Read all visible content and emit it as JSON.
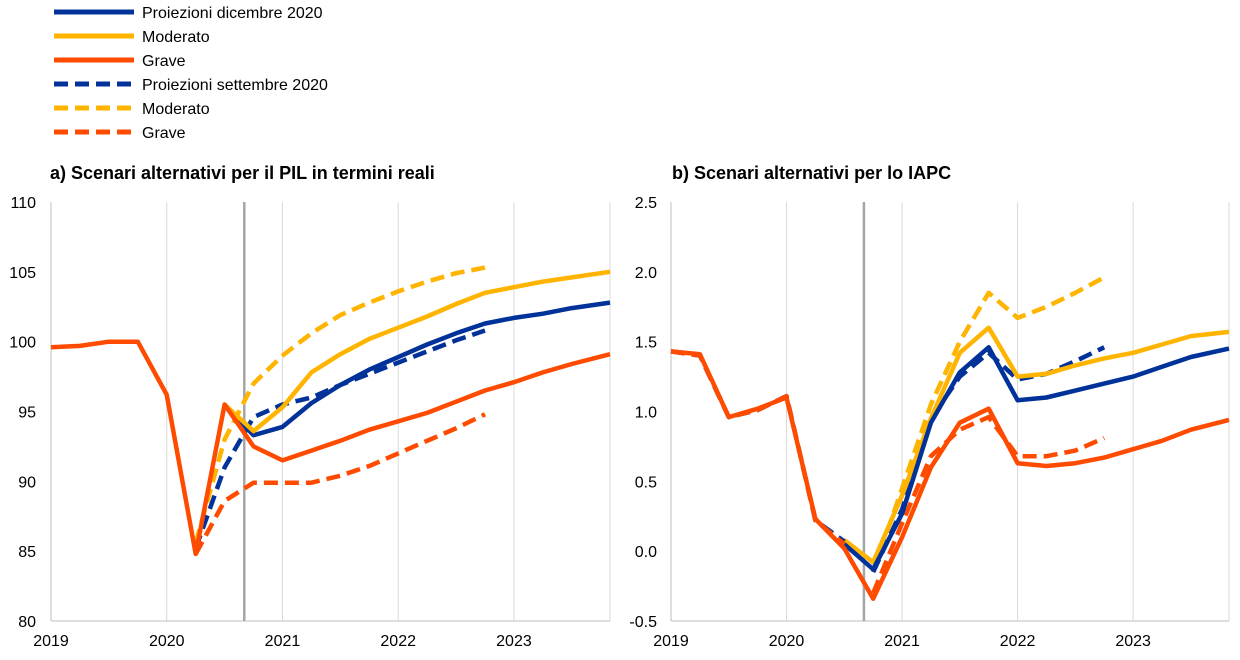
{
  "legend": {
    "items": [
      {
        "label": "Proiezioni dicembre 2020",
        "color": "#003299",
        "dash": false
      },
      {
        "label": "Moderato",
        "color": "#FFB400",
        "dash": false
      },
      {
        "label": "Grave",
        "color": "#FF4B00",
        "dash": false
      },
      {
        "label": "Proiezioni settembre 2020",
        "color": "#003299",
        "dash": true
      },
      {
        "label": "Moderato",
        "color": "#FFB400",
        "dash": true
      },
      {
        "label": "Grave",
        "color": "#FF4B00",
        "dash": true
      }
    ]
  },
  "chart_data": [
    {
      "type": "line",
      "title": "a) Scenari alternativi per il PIL in termini reali",
      "xlabel": "",
      "ylabel": "",
      "x_ticks": [
        "2019",
        "2020",
        "2021",
        "2022",
        "2023"
      ],
      "x_range": [
        2019.0,
        2023.83
      ],
      "ylim": [
        80,
        110
      ],
      "y_ticks": [
        "80",
        "85",
        "90",
        "95",
        "100",
        "105",
        "110"
      ],
      "grid": "vertical",
      "vline": 2020.67,
      "series": [
        {
          "legend_index": 1,
          "color": "#FFB400",
          "dash": true,
          "x": [
            2020.25,
            2020.5,
            2020.75,
            2021.0,
            2021.25,
            2021.5,
            2021.75,
            2022.0,
            2022.25,
            2022.5,
            2022.75
          ],
          "y": [
            85.6,
            93.0,
            97.0,
            99.0,
            100.6,
            101.9,
            102.8,
            103.6,
            104.3,
            104.9,
            105.3
          ]
        },
        {
          "legend_index": 2,
          "color": "#FF4B00",
          "dash": true,
          "x": [
            2020.25,
            2020.5,
            2020.75,
            2021.0,
            2021.25,
            2021.5,
            2021.75,
            2022.0,
            2022.25,
            2022.5,
            2022.75
          ],
          "y": [
            84.8,
            88.6,
            89.9,
            89.9,
            89.9,
            90.4,
            91.1,
            92.0,
            92.9,
            93.8,
            94.8
          ]
        },
        {
          "legend_index": 0,
          "color": "#003299",
          "dash": true,
          "x": [
            2020.25,
            2020.5,
            2020.75,
            2021.0,
            2021.25,
            2021.5,
            2021.75,
            2022.0,
            2022.25,
            2022.5,
            2022.75
          ],
          "y": [
            85.2,
            91.0,
            94.6,
            95.5,
            96.0,
            96.9,
            97.7,
            98.5,
            99.3,
            100.1,
            100.8
          ]
        },
        {
          "legend_index": 0,
          "color": "#003299",
          "dash": false,
          "x": [
            2020.5,
            2020.75,
            2021.0,
            2021.25,
            2021.5,
            2021.75,
            2022.0,
            2022.25,
            2022.5,
            2022.75,
            2023.0,
            2023.25,
            2023.5,
            2023.83
          ],
          "y": [
            95.5,
            93.3,
            93.9,
            95.6,
            96.9,
            98.0,
            98.9,
            99.8,
            100.6,
            101.3,
            101.7,
            102.0,
            102.4,
            102.8
          ]
        },
        {
          "legend_index": 1,
          "color": "#FFB400",
          "dash": false,
          "x": [
            2020.5,
            2020.75,
            2021.0,
            2021.25,
            2021.5,
            2021.75,
            2022.0,
            2022.25,
            2022.5,
            2022.75,
            2023.0,
            2023.25,
            2023.5,
            2023.83
          ],
          "y": [
            95.5,
            93.6,
            95.3,
            97.8,
            99.1,
            100.2,
            101.0,
            101.8,
            102.7,
            103.5,
            103.9,
            104.3,
            104.6,
            105.0
          ]
        },
        {
          "legend_index": 2,
          "color": "#FF4B00",
          "dash": false,
          "x": [
            2019.0,
            2019.25,
            2019.5,
            2019.75,
            2020.0,
            2020.25,
            2020.5,
            2020.75,
            2021.0,
            2021.25,
            2021.5,
            2021.75,
            2022.0,
            2022.25,
            2022.5,
            2022.75,
            2023.0,
            2023.25,
            2023.5,
            2023.83
          ],
          "y": [
            99.6,
            99.7,
            100.0,
            100.0,
            96.2,
            84.8,
            95.5,
            92.5,
            91.5,
            92.2,
            92.9,
            93.7,
            94.3,
            94.9,
            95.7,
            96.5,
            97.1,
            97.8,
            98.4,
            99.1
          ]
        }
      ]
    },
    {
      "type": "line",
      "title": "b) Scenari alternativi per lo IAPC",
      "xlabel": "",
      "ylabel": "",
      "x_ticks": [
        "2019",
        "2020",
        "2021",
        "2022",
        "2023"
      ],
      "x_range": [
        2019.0,
        2023.83
      ],
      "ylim": [
        -0.5,
        2.5
      ],
      "y_ticks": [
        "-0.5",
        "0.0",
        "0.5",
        "1.0",
        "1.5",
        "2.0",
        "2.5"
      ],
      "grid": "vertical",
      "vline": 2020.67,
      "series": [
        {
          "legend_index": 1,
          "color": "#FFB400",
          "dash": true,
          "x": [
            2020.75,
            2021.0,
            2021.25,
            2021.5,
            2021.75,
            2022.0,
            2022.25,
            2022.5,
            2022.75
          ],
          "y": [
            -0.15,
            0.45,
            1.05,
            1.5,
            1.85,
            1.67,
            1.75,
            1.85,
            1.96
          ]
        },
        {
          "legend_index": 2,
          "color": "#FF4B00",
          "dash": true,
          "x": [
            2020.75,
            2021.0,
            2021.25,
            2021.5,
            2021.75,
            2022.0,
            2022.25,
            2022.5,
            2022.75
          ],
          "y": [
            -0.3,
            0.2,
            0.68,
            0.87,
            0.96,
            0.68,
            0.68,
            0.72,
            0.81
          ]
        },
        {
          "legend_index": 0,
          "color": "#003299",
          "dash": true,
          "x": [
            2020.75,
            2021.0,
            2021.25,
            2021.5,
            2021.75,
            2022.0,
            2022.25,
            2022.5,
            2022.75
          ],
          "y": [
            -0.15,
            0.3,
            0.95,
            1.25,
            1.42,
            1.23,
            1.27,
            1.36,
            1.46
          ]
        },
        {
          "legend_index": 1,
          "color": "#FFB400",
          "dash": false,
          "x": [
            2020.5,
            2020.75,
            2021.0,
            2021.25,
            2021.5,
            2021.75,
            2022.0,
            2022.25,
            2022.5,
            2022.75,
            2023.0,
            2023.25,
            2023.5,
            2023.83
          ],
          "y": [
            0.08,
            -0.08,
            0.4,
            0.95,
            1.42,
            1.6,
            1.25,
            1.27,
            1.33,
            1.38,
            1.42,
            1.48,
            1.54,
            1.57
          ]
        },
        {
          "legend_index": 0,
          "color": "#003299",
          "dash": false,
          "x": [
            2020.5,
            2020.75,
            2021.0,
            2021.25,
            2021.5,
            2021.75,
            2022.0,
            2022.25,
            2022.5,
            2022.75,
            2023.0,
            2023.25,
            2023.5,
            2023.83
          ],
          "y": [
            0.05,
            -0.13,
            0.27,
            0.92,
            1.28,
            1.46,
            1.08,
            1.1,
            1.15,
            1.2,
            1.25,
            1.32,
            1.39,
            1.45
          ]
        },
        {
          "legend_index": 0,
          "color": "#003299",
          "dash": true,
          "x": [
            2019.0,
            2019.25,
            2019.5,
            2019.75,
            2020.0,
            2020.25,
            2020.5
          ],
          "y": [
            1.43,
            1.4,
            0.96,
            1.01,
            1.11,
            0.22,
            0.07
          ]
        },
        {
          "legend_index": 2,
          "color": "#FF4B00",
          "dash": false,
          "x": [
            2019.0,
            2019.25,
            2019.5,
            2019.75,
            2020.0,
            2020.25,
            2020.5,
            2020.75,
            2021.0,
            2021.25,
            2021.5,
            2021.75,
            2022.0,
            2022.25,
            2022.5,
            2022.75,
            2023.0,
            2023.25,
            2023.5,
            2023.83
          ],
          "y": [
            1.43,
            1.41,
            0.96,
            1.02,
            1.1,
            0.23,
            0.02,
            -0.34,
            0.1,
            0.6,
            0.92,
            1.02,
            0.63,
            0.61,
            0.63,
            0.67,
            0.73,
            0.79,
            0.87,
            0.94
          ]
        },
        {
          "legend_index": 2,
          "color": "#FF4B00",
          "dash": true,
          "x": [
            2019.0,
            2019.25,
            2019.5,
            2019.75,
            2020.0,
            2020.25,
            2020.5
          ],
          "y": [
            1.43,
            1.4,
            0.96,
            1.01,
            1.11,
            0.22,
            0.05
          ]
        }
      ]
    }
  ]
}
